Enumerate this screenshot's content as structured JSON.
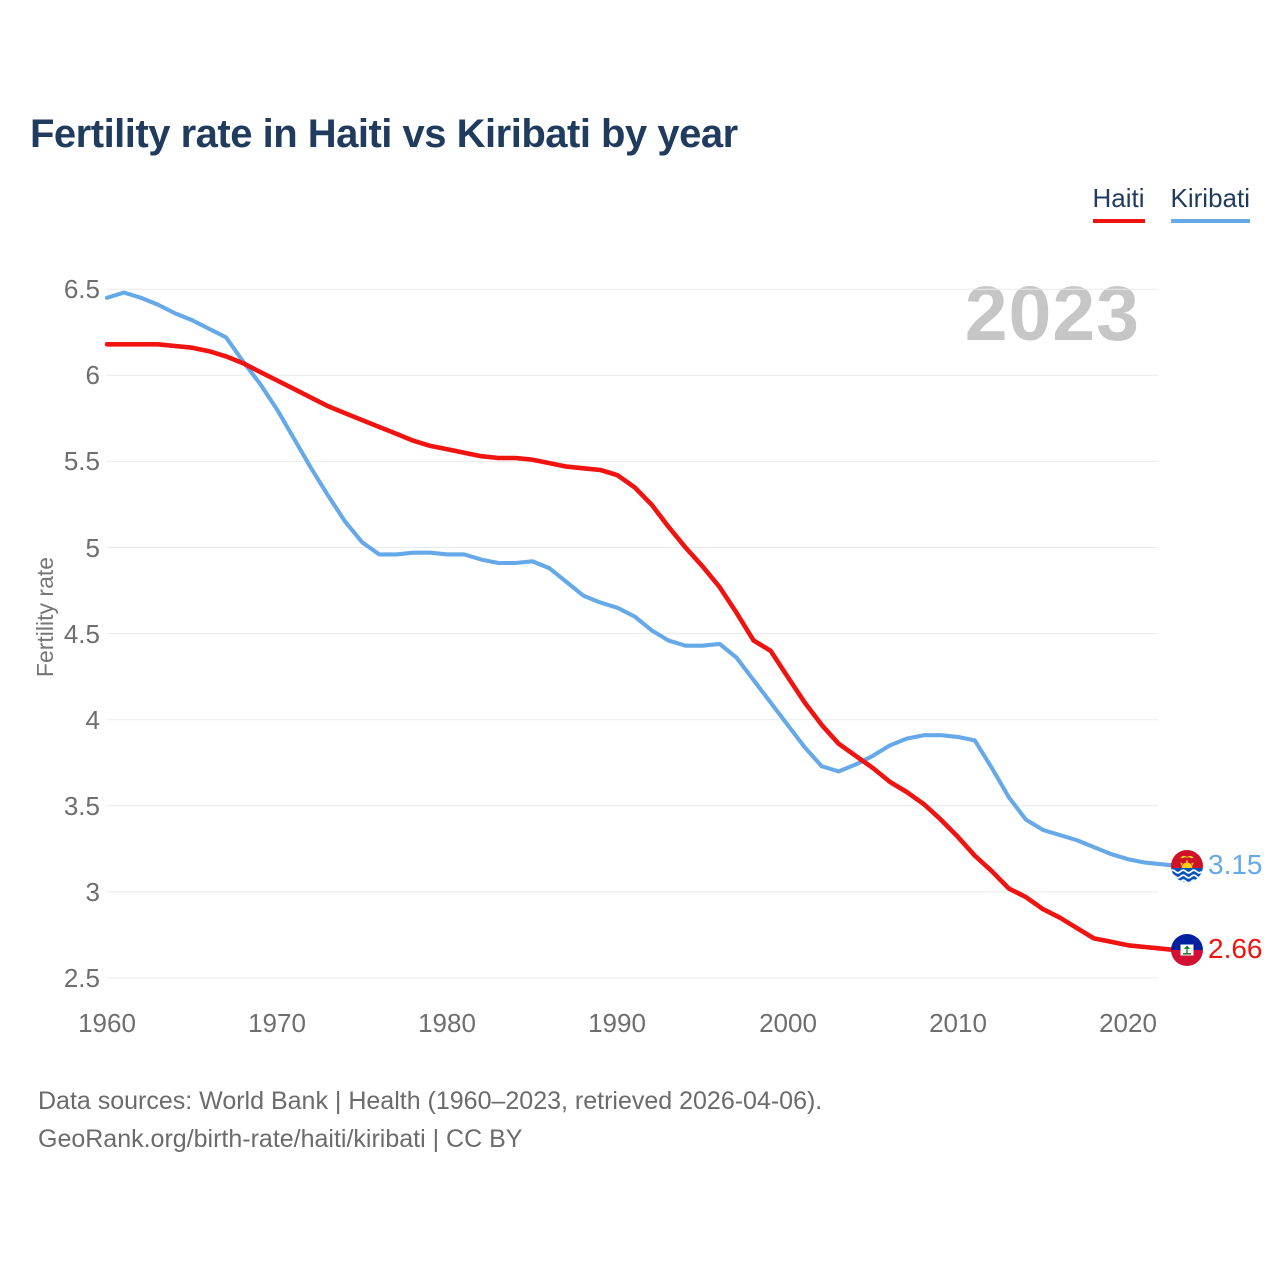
{
  "title": "Fertility rate in Haiti vs Kiribati by year",
  "watermark_year": "2023",
  "legend": [
    {
      "label": "Haiti",
      "color": "#f01310"
    },
    {
      "label": "Kiribati",
      "color": "#66a9e8"
    }
  ],
  "y_axis": {
    "label": "Fertility rate",
    "ticks": [
      "6.5",
      "6",
      "5.5",
      "5",
      "4.5",
      "4",
      "3.5",
      "3",
      "2.5"
    ]
  },
  "x_axis": {
    "ticks": [
      "1960",
      "1970",
      "1980",
      "1990",
      "2000",
      "2010",
      "2020"
    ]
  },
  "end_labels": [
    {
      "series": "Kiribati",
      "value": "3.15",
      "flag": "kiribati-flag",
      "color": "#66a9e8"
    },
    {
      "series": "Haiti",
      "value": "2.66",
      "flag": "haiti-flag",
      "color": "#f01310"
    }
  ],
  "footer": {
    "line1": "Data sources: World Bank | Health (1960–2023, retrieved 2026-04-06).",
    "line2": "GeoRank.org/birth-rate/haiti/kiribati | CC BY"
  },
  "chart_data": {
    "type": "line",
    "title": "Fertility rate in Haiti vs Kiribati by year",
    "xlabel": "",
    "ylabel": "Fertility rate",
    "xlim": [
      1960,
      2023
    ],
    "ylim": [
      2.5,
      6.5
    ],
    "grid": "horizontal",
    "legend_position": "top-right",
    "x": [
      1960,
      1961,
      1962,
      1963,
      1964,
      1965,
      1966,
      1967,
      1968,
      1969,
      1970,
      1971,
      1972,
      1973,
      1974,
      1975,
      1976,
      1977,
      1978,
      1979,
      1980,
      1981,
      1982,
      1983,
      1984,
      1985,
      1986,
      1987,
      1988,
      1989,
      1990,
      1991,
      1992,
      1993,
      1994,
      1995,
      1996,
      1997,
      1998,
      1999,
      2000,
      2001,
      2002,
      2003,
      2004,
      2005,
      2006,
      2007,
      2008,
      2009,
      2010,
      2011,
      2012,
      2013,
      2014,
      2015,
      2016,
      2017,
      2018,
      2019,
      2020,
      2021,
      2022,
      2023
    ],
    "series": [
      {
        "name": "Haiti",
        "color": "#f01310",
        "final_value": 2.66,
        "values": [
          6.18,
          6.18,
          6.18,
          6.18,
          6.17,
          6.16,
          6.14,
          6.11,
          6.07,
          6.02,
          5.97,
          5.92,
          5.87,
          5.82,
          5.78,
          5.74,
          5.7,
          5.66,
          5.62,
          5.59,
          5.57,
          5.55,
          5.53,
          5.52,
          5.52,
          5.51,
          5.49,
          5.47,
          5.46,
          5.45,
          5.42,
          5.35,
          5.25,
          5.12,
          5.0,
          4.89,
          4.77,
          4.62,
          4.46,
          4.4,
          4.25,
          4.1,
          3.97,
          3.86,
          3.79,
          3.72,
          3.64,
          3.58,
          3.51,
          3.42,
          3.32,
          3.21,
          3.12,
          3.02,
          2.97,
          2.9,
          2.85,
          2.79,
          2.73,
          2.71,
          2.69,
          2.68,
          2.67,
          2.66
        ]
      },
      {
        "name": "Kiribati",
        "color": "#66a9e8",
        "final_value": 3.15,
        "values": [
          6.45,
          6.48,
          6.45,
          6.41,
          6.36,
          6.32,
          6.27,
          6.22,
          6.08,
          5.95,
          5.8,
          5.63,
          5.46,
          5.3,
          5.15,
          5.03,
          4.96,
          4.96,
          4.97,
          4.97,
          4.96,
          4.96,
          4.93,
          4.91,
          4.91,
          4.92,
          4.88,
          4.8,
          4.72,
          4.68,
          4.65,
          4.6,
          4.52,
          4.46,
          4.43,
          4.43,
          4.44,
          4.36,
          4.23,
          4.1,
          3.97,
          3.84,
          3.73,
          3.7,
          3.74,
          3.79,
          3.85,
          3.89,
          3.91,
          3.91,
          3.9,
          3.88,
          3.72,
          3.55,
          3.42,
          3.36,
          3.33,
          3.3,
          3.26,
          3.22,
          3.19,
          3.17,
          3.16,
          3.15
        ]
      }
    ]
  }
}
